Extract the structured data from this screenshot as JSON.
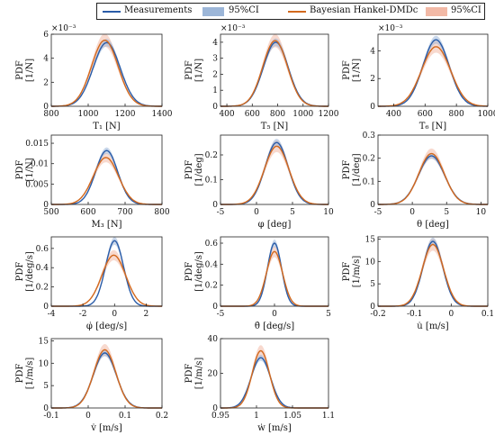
{
  "colors": {
    "measurements": "#2a5ca8",
    "measurements_ci": "#9cb6d8",
    "model": "#d2691e",
    "model_ci": "#f2b9a6",
    "axis": "#222222"
  },
  "legend": {
    "placement": "top-center",
    "entries": [
      {
        "label": "Measurements",
        "kind": "line",
        "color_key": "measurements"
      },
      {
        "label": "95%CI",
        "kind": "band",
        "color_key": "measurements_ci"
      },
      {
        "label": "Bayesian Hankel-DMDc",
        "kind": "line",
        "color_key": "model"
      },
      {
        "label": "95%CI",
        "kind": "band",
        "color_key": "model_ci"
      }
    ]
  },
  "chart_data": [
    {
      "type": "line",
      "panel": "T1",
      "xlabel": "T₁ [N]",
      "ylabel": "PDF [1/N]",
      "exponent": "×10⁻³",
      "xlim": [
        800,
        1400
      ],
      "xticks": [
        "800",
        "1000",
        "1200",
        "1400"
      ],
      "ylim": [
        0,
        6
      ],
      "yticks": [
        "0",
        "2",
        "4",
        "6"
      ],
      "series": [
        {
          "name": "Measurements",
          "mu": 1100,
          "sigma": 73,
          "peak": 5.3
        },
        {
          "name": "Bayesian Hankel-DMDc",
          "mu": 1090,
          "sigma": 72,
          "peak": 5.5
        }
      ]
    },
    {
      "type": "line",
      "panel": "T5",
      "xlabel": "T₅ [N]",
      "ylabel": "PDF [1/N]",
      "exponent": "×10⁻³",
      "xlim": [
        350,
        1200
      ],
      "xticks": [
        "400",
        "600",
        "800",
        "1000",
        "1200"
      ],
      "ylim": [
        0,
        4.5
      ],
      "yticks": [
        "0",
        "1",
        "2",
        "3",
        "4"
      ],
      "series": [
        {
          "name": "Measurements",
          "mu": 785,
          "sigma": 98,
          "peak": 4.0
        },
        {
          "name": "Bayesian Hankel-DMDc",
          "mu": 780,
          "sigma": 97,
          "peak": 4.1
        }
      ]
    },
    {
      "type": "line",
      "panel": "T6",
      "xlabel": "T₆ [N]",
      "ylabel": "PDF [1/N]",
      "exponent": "×10⁻³",
      "xlim": [
        300,
        1000
      ],
      "xticks": [
        "400",
        "600",
        "800",
        "1000"
      ],
      "ylim": [
        0,
        5.2
      ],
      "yticks": [
        "0",
        "2",
        "4"
      ],
      "series": [
        {
          "name": "Measurements",
          "mu": 670,
          "sigma": 84,
          "peak": 4.8
        },
        {
          "name": "Bayesian Hankel-DMDc",
          "mu": 670,
          "sigma": 92,
          "peak": 4.3
        }
      ]
    },
    {
      "type": "line",
      "panel": "M3",
      "xlabel": "M₃ [N]",
      "ylabel": "PDF [1/N]",
      "xlim": [
        500,
        800
      ],
      "xticks": [
        "500",
        "600",
        "700",
        "800"
      ],
      "ylim": [
        0,
        0.017
      ],
      "yticks": [
        "0",
        "0.005",
        "0.01",
        "0.015"
      ],
      "series": [
        {
          "name": "Measurements",
          "mu": 650,
          "sigma": 30,
          "peak": 0.0132
        },
        {
          "name": "Bayesian Hankel-DMDc",
          "mu": 648,
          "sigma": 34,
          "peak": 0.0115
        }
      ]
    },
    {
      "type": "line",
      "panel": "phi",
      "xlabel": "φ [deg]",
      "ylabel": "PDF [1/deg]",
      "xlim": [
        -5,
        10
      ],
      "xticks": [
        "-5",
        "0",
        "5",
        "10"
      ],
      "ylim": [
        0,
        0.28
      ],
      "yticks": [
        "0",
        "0.1",
        "0.2"
      ],
      "series": [
        {
          "name": "Measurements",
          "mu": 2.8,
          "sigma": 1.6,
          "peak": 0.25
        },
        {
          "name": "Bayesian Hankel-DMDc",
          "mu": 2.8,
          "sigma": 1.7,
          "peak": 0.235
        }
      ]
    },
    {
      "type": "line",
      "panel": "theta",
      "xlabel": "θ [deg]",
      "ylabel": "PDF [1/deg]",
      "xlim": [
        -5,
        11
      ],
      "xticks": [
        "-5",
        "0",
        "5",
        "10"
      ],
      "ylim": [
        0,
        0.3
      ],
      "yticks": [
        "0",
        "0.1",
        "0.2",
        "0.3"
      ],
      "series": [
        {
          "name": "Measurements",
          "mu": 2.8,
          "sigma": 1.9,
          "peak": 0.21
        },
        {
          "name": "Bayesian Hankel-DMDc",
          "mu": 2.8,
          "sigma": 1.85,
          "peak": 0.22
        }
      ]
    },
    {
      "type": "line",
      "panel": "phidot",
      "xlabel": "φ̇ [deg/s]",
      "ylabel": "PDF [1/deg/s]",
      "xlim": [
        -4,
        3
      ],
      "xticks": [
        "-4",
        "-2",
        "0",
        "2"
      ],
      "ylim": [
        0,
        0.72
      ],
      "yticks": [
        "0",
        "0.2",
        "0.4",
        "0.6"
      ],
      "series": [
        {
          "name": "Measurements",
          "mu": 0,
          "sigma": 0.57,
          "peak": 0.68
        },
        {
          "name": "Bayesian Hankel-DMDc",
          "mu": -0.05,
          "sigma": 0.75,
          "peak": 0.53
        }
      ]
    },
    {
      "type": "line",
      "panel": "thetadot",
      "xlabel": "θ̇ [deg/s]",
      "ylabel": "PDF [1/deg/s]",
      "xlim": [
        -5,
        5
      ],
      "xticks": [
        "-5",
        "0",
        "5"
      ],
      "ylim": [
        0,
        0.66
      ],
      "yticks": [
        "0",
        "0.2",
        "0.4",
        "0.6"
      ],
      "series": [
        {
          "name": "Measurements",
          "mu": 0,
          "sigma": 0.65,
          "peak": 0.6
        },
        {
          "name": "Bayesian Hankel-DMDc",
          "mu": 0,
          "sigma": 0.75,
          "peak": 0.52
        }
      ]
    },
    {
      "type": "line",
      "panel": "udot",
      "xlabel": "u̇ [m/s]",
      "ylabel": "PDF [1/m/s]",
      "xlim": [
        -0.2,
        0.1
      ],
      "xticks": [
        "-0.2",
        "-0.1",
        "0",
        "0.1"
      ],
      "ylim": [
        0,
        15.5
      ],
      "yticks": [
        "0",
        "5",
        "10",
        "15"
      ],
      "series": [
        {
          "name": "Measurements",
          "mu": -0.05,
          "sigma": 0.027,
          "peak": 14.5
        },
        {
          "name": "Bayesian Hankel-DMDc",
          "mu": -0.05,
          "sigma": 0.029,
          "peak": 13.8
        }
      ]
    },
    {
      "type": "line",
      "panel": "vdot",
      "xlabel": "v̇ [m/s]",
      "ylabel": "PDF [1/m/s]",
      "xlim": [
        -0.1,
        0.2
      ],
      "xticks": [
        "-0.1",
        "0",
        "0.1",
        "0.2"
      ],
      "ylim": [
        0,
        15.5
      ],
      "yticks": [
        "0",
        "5",
        "10",
        "15"
      ],
      "series": [
        {
          "name": "Measurements",
          "mu": 0.045,
          "sigma": 0.031,
          "peak": 12.3
        },
        {
          "name": "Bayesian Hankel-DMDc",
          "mu": 0.045,
          "sigma": 0.03,
          "peak": 13.0
        }
      ]
    },
    {
      "type": "line",
      "panel": "wdot",
      "xlabel": "ẇ [m/s]",
      "ylabel": "PDF [1/m/s]",
      "xlim": [
        0.95,
        1.1
      ],
      "xticks": [
        "0.95",
        "1",
        "1.05",
        "1.1"
      ],
      "ylim": [
        0,
        40
      ],
      "yticks": [
        "0",
        "20",
        "40"
      ],
      "series": [
        {
          "name": "Measurements",
          "mu": 1.006,
          "sigma": 0.0135,
          "peak": 29
        },
        {
          "name": "Bayesian Hankel-DMDc",
          "mu": 1.006,
          "sigma": 0.012,
          "peak": 33
        }
      ]
    }
  ]
}
